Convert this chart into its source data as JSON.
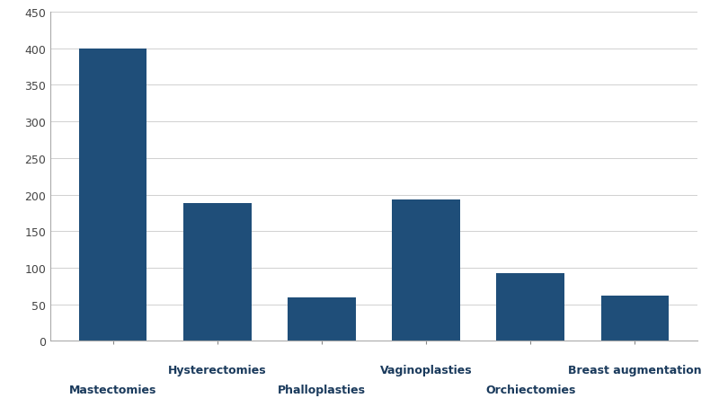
{
  "categories": [
    "Mastectomies",
    "Hysterectomies",
    "Phalloplasties",
    "Vaginoplasties",
    "Orchiectomies",
    "Breast augmentation"
  ],
  "values": [
    400,
    188,
    60,
    193,
    93,
    62
  ],
  "bar_color": "#1F4E79",
  "ylim": [
    0,
    450
  ],
  "yticks": [
    0,
    50,
    100,
    150,
    200,
    250,
    300,
    350,
    400,
    450
  ],
  "background_color": "#ffffff",
  "grid_color": "#d0d0d0",
  "bar_width": 0.65,
  "figsize": [
    8.0,
    4.64
  ],
  "dpi": 100,
  "label_fontsize": 9,
  "tick_fontsize": 9,
  "label_color": "#1a3a5c"
}
